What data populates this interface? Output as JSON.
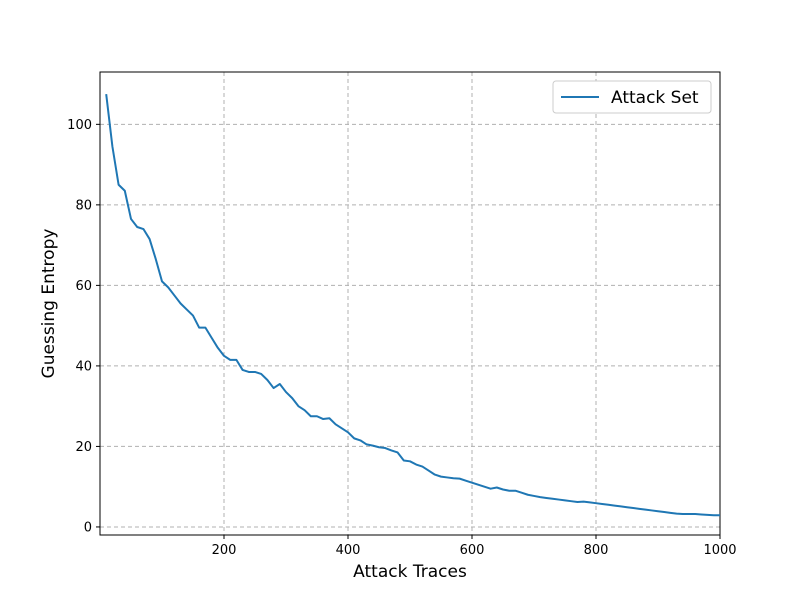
{
  "chart_data": {
    "type": "line",
    "xlabel": "Attack Traces",
    "ylabel": "Guessing Entropy",
    "xlim": [
      0,
      1000
    ],
    "ylim": [
      -2,
      113
    ],
    "xticks": [
      200,
      400,
      600,
      800,
      1000
    ],
    "yticks": [
      0,
      20,
      40,
      60,
      80,
      100
    ],
    "grid": true,
    "legend_position": "top-right",
    "series": [
      {
        "name": "Attack Set",
        "color": "#1f77b4",
        "x": [
          10,
          20,
          30,
          40,
          50,
          60,
          70,
          80,
          90,
          100,
          110,
          120,
          130,
          140,
          150,
          160,
          170,
          180,
          190,
          200,
          210,
          220,
          230,
          240,
          250,
          260,
          270,
          280,
          290,
          300,
          310,
          320,
          330,
          340,
          350,
          360,
          370,
          380,
          390,
          400,
          410,
          420,
          430,
          440,
          450,
          460,
          470,
          480,
          490,
          500,
          510,
          520,
          530,
          540,
          550,
          560,
          570,
          580,
          590,
          600,
          610,
          620,
          630,
          640,
          650,
          660,
          670,
          680,
          690,
          700,
          710,
          720,
          730,
          740,
          750,
          760,
          770,
          780,
          790,
          800,
          810,
          820,
          830,
          840,
          850,
          860,
          870,
          880,
          890,
          900,
          910,
          920,
          930,
          940,
          950,
          960,
          970,
          980,
          990,
          1000
        ],
        "values": [
          107.5,
          94.5,
          85,
          83.5,
          76.5,
          74.5,
          74,
          71.5,
          66.5,
          61,
          59.5,
          57.5,
          55.5,
          54,
          52.5,
          49.5,
          49.5,
          47,
          44.5,
          42.5,
          41.5,
          41.5,
          39,
          38.5,
          38.5,
          38,
          36.5,
          34.5,
          35.5,
          33.5,
          32,
          30,
          29,
          27.5,
          27.5,
          26.8,
          27,
          25.5,
          24.5,
          23.5,
          22,
          21.5,
          20.5,
          20.2,
          19.8,
          19.6,
          19,
          18.5,
          16.5,
          16.3,
          15.5,
          15,
          14,
          13,
          12.5,
          12.3,
          12.1,
          12,
          11.5,
          11,
          10.5,
          10,
          9.5,
          9.8,
          9.3,
          9,
          9,
          8.5,
          8,
          7.7,
          7.4,
          7.2,
          7,
          6.8,
          6.6,
          6.4,
          6.2,
          6.3,
          6.1,
          5.9,
          5.7,
          5.5,
          5.3,
          5.1,
          4.9,
          4.7,
          4.5,
          4.3,
          4.1,
          3.9,
          3.7,
          3.5,
          3.3,
          3.2,
          3.2,
          3.2,
          3.1,
          3.0,
          2.9,
          2.9
        ]
      }
    ]
  }
}
